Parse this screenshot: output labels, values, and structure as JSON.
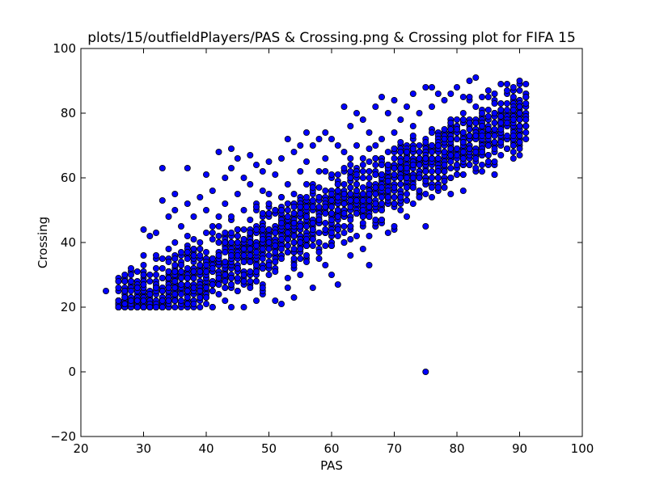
{
  "chart_data": {
    "type": "scatter",
    "title": "plots/15/outfieldPlayers/PAS & Crossing.png & Crossing plot for FIFA 15",
    "xlabel": "PAS",
    "ylabel": "Crossing",
    "xlim": [
      20,
      100
    ],
    "ylim": [
      -20,
      100
    ],
    "xticks": [
      20,
      30,
      40,
      50,
      60,
      70,
      80,
      90,
      100
    ],
    "yticks": [
      -20,
      0,
      20,
      40,
      60,
      80,
      100
    ],
    "grid": false,
    "point_color": "#0000ff",
    "edge_color": "#000000",
    "trend": {
      "slope": 0.95,
      "intercept": -7,
      "spread": 7.5,
      "x_min": 26,
      "x_max": 91,
      "y_min": 20,
      "y_max": 91
    },
    "points": [
      [
        24,
        25
      ],
      [
        26,
        20
      ],
      [
        26,
        22
      ],
      [
        26,
        25
      ],
      [
        26,
        28
      ],
      [
        27,
        21
      ],
      [
        27,
        24
      ],
      [
        27,
        29
      ],
      [
        28,
        20
      ],
      [
        28,
        23
      ],
      [
        28,
        26
      ],
      [
        28,
        31
      ],
      [
        29,
        22
      ],
      [
        29,
        27
      ],
      [
        30,
        20
      ],
      [
        30,
        24
      ],
      [
        30,
        29
      ],
      [
        30,
        33
      ],
      [
        30,
        44
      ],
      [
        31,
        23
      ],
      [
        31,
        30
      ],
      [
        31,
        42
      ],
      [
        32,
        21
      ],
      [
        32,
        27
      ],
      [
        32,
        32
      ],
      [
        32,
        43
      ],
      [
        33,
        20
      ],
      [
        33,
        26
      ],
      [
        33,
        35
      ],
      [
        33,
        53
      ],
      [
        33,
        63
      ],
      [
        34,
        24
      ],
      [
        34,
        30
      ],
      [
        34,
        38
      ],
      [
        34,
        48
      ],
      [
        35,
        22
      ],
      [
        35,
        29
      ],
      [
        35,
        40
      ],
      [
        35,
        50
      ],
      [
        35,
        55
      ],
      [
        36,
        21
      ],
      [
        36,
        27
      ],
      [
        36,
        33
      ],
      [
        36,
        45
      ],
      [
        37,
        20
      ],
      [
        37,
        26
      ],
      [
        37,
        36
      ],
      [
        37,
        52
      ],
      [
        37,
        63
      ],
      [
        38,
        22
      ],
      [
        38,
        30
      ],
      [
        38,
        41
      ],
      [
        38,
        48
      ],
      [
        39,
        20
      ],
      [
        39,
        28
      ],
      [
        39,
        38
      ],
      [
        39,
        54
      ],
      [
        40,
        21
      ],
      [
        40,
        31
      ],
      [
        40,
        43
      ],
      [
        40,
        50
      ],
      [
        40,
        61
      ],
      [
        41,
        20
      ],
      [
        41,
        33
      ],
      [
        41,
        45
      ],
      [
        41,
        56
      ],
      [
        42,
        24
      ],
      [
        42,
        36
      ],
      [
        42,
        48
      ],
      [
        42,
        68
      ],
      [
        43,
        22
      ],
      [
        43,
        40
      ],
      [
        43,
        52
      ],
      [
        43,
        60
      ],
      [
        44,
        20
      ],
      [
        44,
        35
      ],
      [
        44,
        47
      ],
      [
        44,
        63
      ],
      [
        44,
        69
      ],
      [
        45,
        25
      ],
      [
        45,
        42
      ],
      [
        45,
        55
      ],
      [
        45,
        66
      ],
      [
        46,
        20
      ],
      [
        46,
        38
      ],
      [
        46,
        50
      ],
      [
        46,
        60
      ],
      [
        47,
        27
      ],
      [
        47,
        44
      ],
      [
        47,
        58
      ],
      [
        47,
        67
      ],
      [
        48,
        22
      ],
      [
        48,
        40
      ],
      [
        48,
        52
      ],
      [
        48,
        64
      ],
      [
        49,
        24
      ],
      [
        49,
        46
      ],
      [
        49,
        56
      ],
      [
        49,
        62
      ],
      [
        50,
        30
      ],
      [
        50,
        44
      ],
      [
        50,
        55
      ],
      [
        50,
        65
      ],
      [
        51,
        22
      ],
      [
        51,
        36
      ],
      [
        51,
        50
      ],
      [
        51,
        61
      ],
      [
        52,
        21
      ],
      [
        52,
        40
      ],
      [
        52,
        54
      ],
      [
        52,
        66
      ],
      [
        53,
        26
      ],
      [
        53,
        46
      ],
      [
        53,
        58
      ],
      [
        53,
        72
      ],
      [
        54,
        23
      ],
      [
        54,
        42
      ],
      [
        54,
        55
      ],
      [
        54,
        68
      ],
      [
        55,
        30
      ],
      [
        55,
        48
      ],
      [
        55,
        62
      ],
      [
        55,
        70
      ],
      [
        56,
        35
      ],
      [
        56,
        52
      ],
      [
        56,
        65
      ],
      [
        56,
        74
      ],
      [
        57,
        26
      ],
      [
        57,
        45
      ],
      [
        57,
        58
      ],
      [
        57,
        70
      ],
      [
        58,
        38
      ],
      [
        58,
        50
      ],
      [
        58,
        62
      ],
      [
        58,
        72
      ],
      [
        59,
        33
      ],
      [
        59,
        52
      ],
      [
        59,
        66
      ],
      [
        59,
        74
      ],
      [
        60,
        30
      ],
      [
        60,
        48
      ],
      [
        60,
        60
      ],
      [
        60,
        72
      ],
      [
        61,
        27
      ],
      [
        61,
        44
      ],
      [
        61,
        58
      ],
      [
        61,
        70
      ],
      [
        62,
        82
      ],
      [
        62,
        40
      ],
      [
        62,
        55
      ],
      [
        62,
        68
      ],
      [
        63,
        36
      ],
      [
        63,
        52
      ],
      [
        63,
        64
      ],
      [
        63,
        76
      ],
      [
        64,
        42
      ],
      [
        64,
        58
      ],
      [
        64,
        70
      ],
      [
        64,
        80
      ],
      [
        65,
        38
      ],
      [
        65,
        55
      ],
      [
        65,
        66
      ],
      [
        65,
        78
      ],
      [
        66,
        33
      ],
      [
        66,
        50
      ],
      [
        66,
        62
      ],
      [
        66,
        74
      ],
      [
        67,
        45
      ],
      [
        67,
        58
      ],
      [
        67,
        70
      ],
      [
        67,
        82
      ],
      [
        68,
        46
      ],
      [
        68,
        60
      ],
      [
        68,
        72
      ],
      [
        68,
        85
      ],
      [
        69,
        43
      ],
      [
        69,
        56
      ],
      [
        69,
        68
      ],
      [
        69,
        80
      ],
      [
        70,
        44
      ],
      [
        70,
        60
      ],
      [
        70,
        74
      ],
      [
        70,
        84
      ],
      [
        71,
        50
      ],
      [
        71,
        64
      ],
      [
        71,
        78
      ],
      [
        72,
        48
      ],
      [
        72,
        58
      ],
      [
        72,
        70
      ],
      [
        72,
        82
      ],
      [
        73,
        52
      ],
      [
        73,
        66
      ],
      [
        73,
        76
      ],
      [
        73,
        86
      ],
      [
        74,
        55
      ],
      [
        74,
        68
      ],
      [
        74,
        80
      ],
      [
        75,
        0
      ],
      [
        75,
        45
      ],
      [
        75,
        60
      ],
      [
        75,
        72
      ],
      [
        75,
        88
      ],
      [
        76,
        58
      ],
      [
        76,
        70
      ],
      [
        76,
        82
      ],
      [
        76,
        88
      ],
      [
        77,
        60
      ],
      [
        77,
        74
      ],
      [
        77,
        86
      ],
      [
        78,
        62
      ],
      [
        78,
        72
      ],
      [
        78,
        84
      ],
      [
        79,
        60
      ],
      [
        79,
        76
      ],
      [
        79,
        86
      ],
      [
        80,
        64
      ],
      [
        80,
        78
      ],
      [
        80,
        88
      ],
      [
        81,
        67
      ],
      [
        81,
        80
      ],
      [
        81,
        85
      ],
      [
        82,
        67
      ],
      [
        82,
        76
      ],
      [
        82,
        90
      ],
      [
        83,
        72
      ],
      [
        83,
        82
      ],
      [
        83,
        91
      ],
      [
        84,
        74
      ],
      [
        84,
        85
      ],
      [
        85,
        78
      ],
      [
        85,
        87
      ],
      [
        86,
        80
      ],
      [
        86,
        84
      ],
      [
        87,
        83
      ],
      [
        87,
        89
      ],
      [
        88,
        83
      ],
      [
        88,
        86
      ],
      [
        89,
        85
      ],
      [
        91,
        82
      ],
      [
        91,
        85
      ]
    ]
  }
}
